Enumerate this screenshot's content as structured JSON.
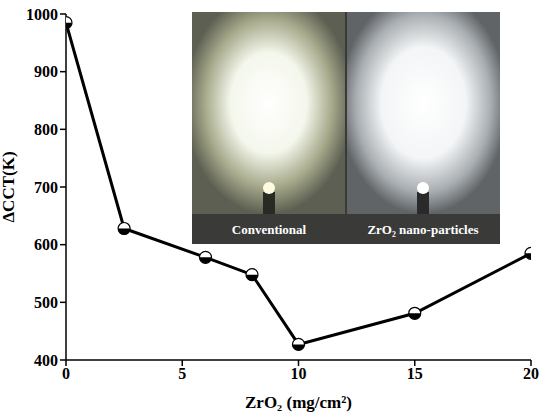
{
  "chart_data": {
    "type": "line",
    "x_label": "ZrO₂ (mg/cm²)",
    "y_label": "ΔCCT(K)",
    "x": [
      0,
      2.5,
      6,
      8,
      10,
      15,
      20
    ],
    "values": [
      985,
      628,
      578,
      548,
      427,
      481,
      585
    ],
    "color": "#000000",
    "marker": "half_filled",
    "line_style": "solid",
    "xlim": [
      0,
      20
    ],
    "xticks": [
      0,
      5,
      10,
      15,
      20
    ],
    "ylim": [
      400,
      1000
    ],
    "yticks": [
      400,
      500,
      600,
      700,
      800,
      900,
      1000
    ],
    "grid": false,
    "annotations": [
      "Conventional",
      "ZrO₂ nano-particles"
    ]
  }
}
